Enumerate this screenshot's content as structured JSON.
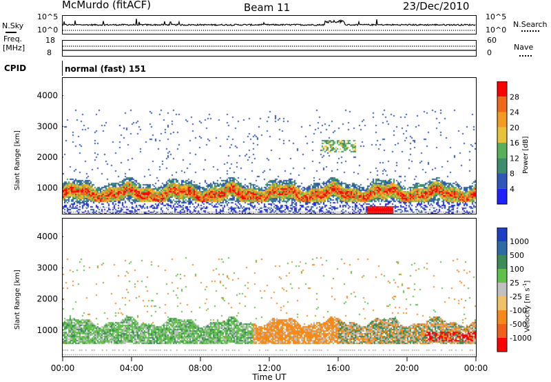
{
  "header": {
    "station": "McMurdo (fitACF)",
    "beam": "Beam 11",
    "date": "23/Dec/2010"
  },
  "top_panels": {
    "nsky_label": "N.Sky",
    "nsky_ticks": [
      "10^5",
      "10^0"
    ],
    "nsearch_label": "N.Search",
    "nsearch_ticks": [
      "10^5",
      "10^0"
    ],
    "freq_label": "Freq.",
    "freq_unit": "[MHz]",
    "freq_ticks": [
      "18",
      "8"
    ],
    "nave_label": "Nave",
    "nave_ticks": [
      "60",
      "0"
    ],
    "cpid_label": "CPID",
    "cpid_value": "normal (fast) 151"
  },
  "x_axis": {
    "label": "Time UT",
    "ticks": [
      "00:00",
      "04:00",
      "08:00",
      "12:00",
      "16:00",
      "20:00",
      "00:00"
    ]
  },
  "chart_data": [
    {
      "type": "heatmap",
      "panel": "power",
      "ylabel": "Slant Range [km]",
      "xlabel": "Time UT",
      "x_range_hours": [
        0,
        24
      ],
      "ylim": [
        180,
        4600
      ],
      "y_ticks": [
        1000,
        2000,
        3000,
        4000
      ],
      "colorbar": {
        "label": "Power [dB]",
        "tick_labels": [
          "4",
          "8",
          "12",
          "16",
          "20",
          "24",
          "28"
        ],
        "range": [
          0,
          30
        ],
        "colors": [
          "#1e22ff",
          "#2f56b8",
          "#3c8c6e",
          "#58b05a",
          "#e8c23a",
          "#f39a20",
          "#f0681a",
          "#ff0000"
        ]
      },
      "features": [
        {
          "desc": "main echo band",
          "time_hours": [
            0,
            24
          ],
          "range_km": [
            600,
            1250
          ],
          "value_db": 14
        },
        {
          "desc": "strong core patches",
          "time_hours": [
            1,
            23
          ],
          "range_km": [
            700,
            1050
          ],
          "value_db": 26
        },
        {
          "desc": "near-range strong patch",
          "time_hours": [
            17.6,
            19.2
          ],
          "range_km": [
            180,
            420
          ],
          "value_db": 29
        },
        {
          "desc": "near-range scatter",
          "time_hours": [
            0,
            24
          ],
          "range_km": [
            180,
            600
          ],
          "value_db": 6
        },
        {
          "desc": "upper scatter",
          "time_hours": [
            0,
            24
          ],
          "range_km": [
            1300,
            3600
          ],
          "value_db": 5
        },
        {
          "desc": "mid patch 15:00-17:00",
          "time_hours": [
            15,
            17
          ],
          "range_km": [
            2200,
            2600
          ],
          "value_db": 12
        }
      ]
    },
    {
      "type": "heatmap",
      "panel": "velocity",
      "ylabel": "Slant Range [km]",
      "xlabel": "Time UT",
      "x_range_hours": [
        0,
        24
      ],
      "ylim": [
        180,
        4600
      ],
      "y_ticks": [
        1000,
        2000,
        3000,
        4000
      ],
      "colorbar": {
        "label": "Velocity [m s^-1]",
        "label_main": "Velocity [m s",
        "label_sup": "-1",
        "label_close": "]",
        "tick_labels": [
          "1000",
          "500",
          "100",
          "25",
          "-25",
          "-100",
          "-500",
          "-1000"
        ],
        "range": [
          -1200,
          1200
        ],
        "colors": [
          "#1d3fc4",
          "#2d6aa8",
          "#3a8a5a",
          "#5fc04a",
          "#c0c0c0",
          "#f0c068",
          "#f58a1a",
          "#f0601a",
          "#ff0000"
        ]
      },
      "features": [
        {
          "desc": "positive velocities",
          "time_hours": [
            0,
            11
          ],
          "range_km": [
            600,
            1800
          ],
          "value_ms": 150
        },
        {
          "desc": "negative velocities",
          "time_hours": [
            11,
            16
          ],
          "range_km": [
            600,
            1500
          ],
          "value_ms": -250
        },
        {
          "desc": "mixed late day",
          "time_hours": [
            16,
            24
          ],
          "range_km": [
            400,
            1600
          ],
          "value_ms": -150
        },
        {
          "desc": "near-range red patch",
          "time_hours": [
            21,
            24
          ],
          "range_km": [
            700,
            1000
          ],
          "value_ms": -900
        }
      ]
    }
  ]
}
